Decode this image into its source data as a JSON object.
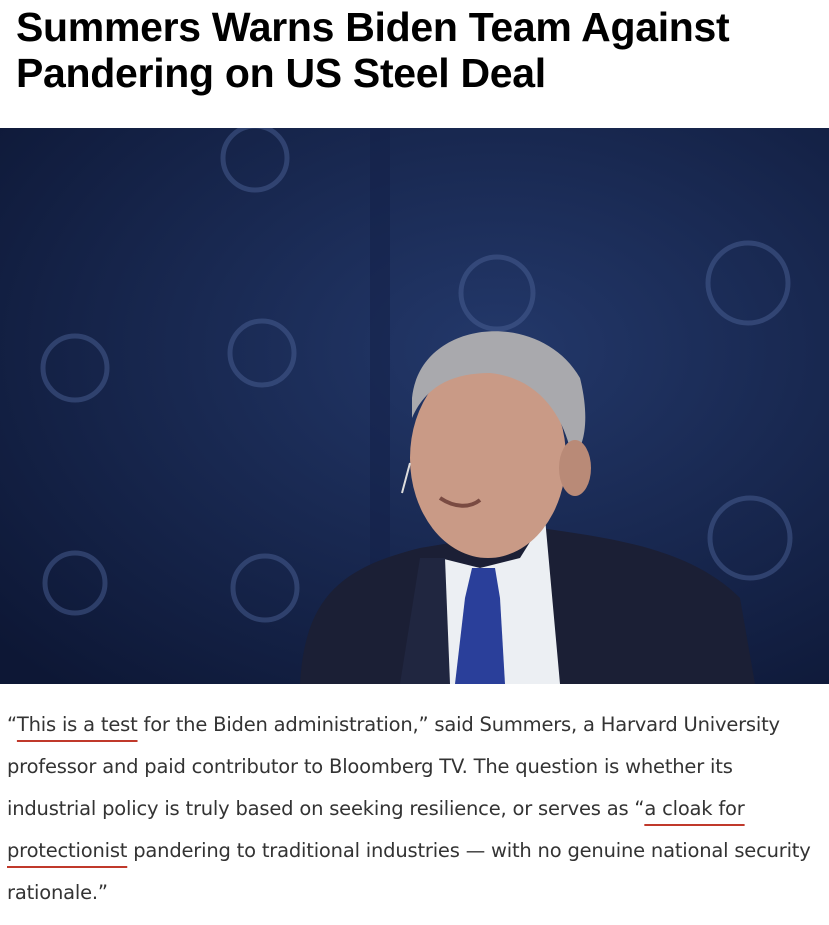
{
  "article": {
    "headline": "Summers Warns Biden Team Against Pandering on US Steel Deal",
    "paragraph": [
      "“",
      "This is a test",
      " for the Biden administration,” said Summers, a Harvard University professor and paid contributor to Bloomberg TV. The question is whether its industrial policy is truly based on seeking resilience, or serves as “",
      "a cloak for protectionist",
      " pandering to traditional industries — with no genuine national security rationale.”"
    ]
  }
}
